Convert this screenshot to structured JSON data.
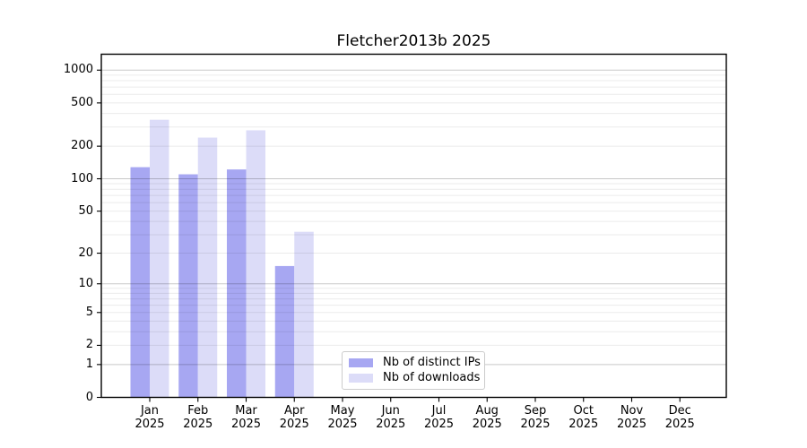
{
  "title": "Fletcher2013b 2025",
  "chart_data": {
    "type": "bar",
    "title": "Fletcher2013b 2025",
    "y_scale": "log1p",
    "ylim": [
      0,
      1400
    ],
    "y_ticks": [
      1000,
      500,
      200,
      100,
      50,
      20,
      10,
      5,
      2,
      1,
      0
    ],
    "grid": "horizontal major and log-minor gridlines",
    "legend_position": "lower center",
    "categories": [
      "Jan 2025",
      "Feb 2025",
      "Mar 2025",
      "Apr 2025",
      "May 2025",
      "Jun 2025",
      "Jul 2025",
      "Aug 2025",
      "Sep 2025",
      "Oct 2025",
      "Nov 2025",
      "Dec 2025"
    ],
    "series": [
      {
        "name": "Nb of distinct IPs",
        "color": "#a7a7f2",
        "values": [
          128,
          110,
          122,
          15,
          0,
          0,
          0,
          0,
          0,
          0,
          0,
          0
        ]
      },
      {
        "name": "Nb of downloads",
        "color": "#dcdcf8",
        "values": [
          350,
          240,
          280,
          32,
          0,
          0,
          0,
          0,
          0,
          0,
          0,
          0
        ]
      }
    ]
  },
  "colors": {
    "grid_major": "#c8c8c8",
    "grid_minor": "#ebebeb",
    "spine": "#000000",
    "background": "#ffffff"
  }
}
